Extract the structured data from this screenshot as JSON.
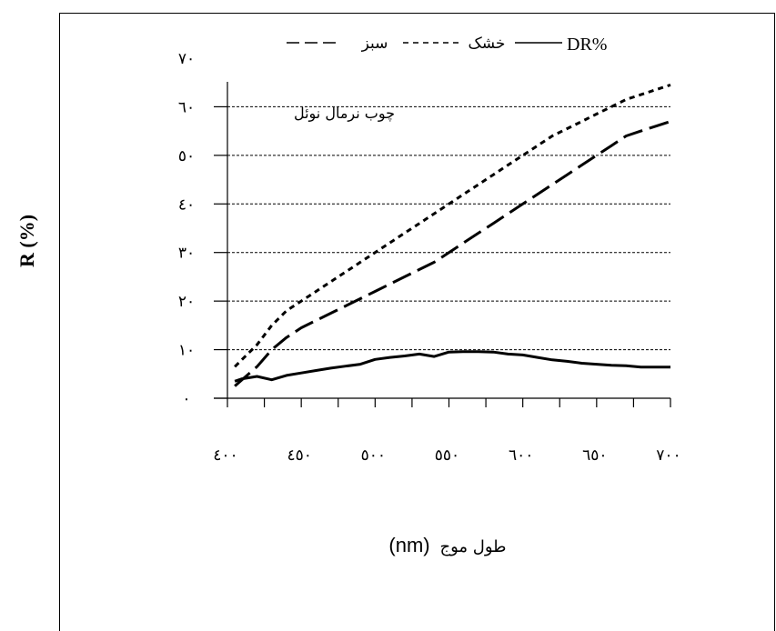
{
  "chart_data": {
    "type": "line",
    "ylabel": "R (%)",
    "xlabel_text": "طول موج",
    "xlabel_unit": "nm",
    "annotation": "چوب نرمال نوئل",
    "legend": [
      {
        "label": "DR%",
        "style": "solid"
      },
      {
        "label": "خشک",
        "style": "dashed"
      },
      {
        "label": "سبز",
        "style": "longdash"
      }
    ],
    "ylim": [
      0,
      70
    ],
    "yticks": [
      0,
      10,
      20,
      30,
      40,
      50,
      60,
      70
    ],
    "ytick_labels": [
      "٠",
      "١٠",
      "٢٠",
      "٣٠",
      "٤٠",
      "٥٠",
      "٦٠",
      "٧٠"
    ],
    "xlim": [
      400,
      700
    ],
    "xticks": [
      400,
      450,
      500,
      550,
      600,
      650,
      700
    ],
    "xtick_labels": [
      "٤٠٠",
      "٤٥٠",
      "٥٠٠",
      "٥٥٠",
      "٦٠٠",
      "٦٥٠",
      "٧٠٠"
    ],
    "grid": "horizontal-dashed",
    "series": [
      {
        "name": "DR%",
        "style": "solid",
        "x": [
          405,
          410,
          420,
          430,
          440,
          450,
          460,
          470,
          480,
          490,
          500,
          510,
          520,
          530,
          540,
          550,
          560,
          570,
          580,
          590,
          600,
          610,
          620,
          630,
          640,
          650,
          660,
          670,
          680,
          690,
          700
        ],
        "y": [
          3.5,
          4,
          4.5,
          3.8,
          4.7,
          5.2,
          5.7,
          6.2,
          6.6,
          7,
          8,
          8.4,
          8.7,
          9.1,
          8.6,
          9.5,
          9.6,
          9.6,
          9.5,
          9.1,
          8.9,
          8.4,
          7.9,
          7.6,
          7.2,
          7,
          6.8,
          6.7,
          6.4,
          6.4,
          6.4
        ]
      },
      {
        "name": "خشک",
        "style": "dashed",
        "x": [
          405,
          420,
          430,
          440,
          450,
          460,
          470,
          480,
          490,
          500,
          510,
          520,
          530,
          540,
          550,
          560,
          570,
          580,
          590,
          600,
          610,
          620,
          630,
          640,
          650,
          660,
          670,
          680,
          690,
          700
        ],
        "y": [
          6.5,
          11,
          15,
          18,
          20,
          22,
          24,
          26,
          28,
          30,
          32,
          34,
          36,
          38,
          40,
          42,
          44,
          46,
          48,
          50,
          52,
          54,
          55.5,
          57,
          58.5,
          60,
          61.5,
          62.5,
          63.5,
          64.5
        ]
      },
      {
        "name": "سبز",
        "style": "longdash",
        "x": [
          405,
          420,
          430,
          440,
          450,
          460,
          470,
          480,
          490,
          500,
          510,
          520,
          530,
          540,
          550,
          560,
          570,
          580,
          590,
          600,
          610,
          620,
          630,
          640,
          650,
          660,
          670,
          680,
          690,
          700
        ],
        "y": [
          2.5,
          6.5,
          10,
          12.5,
          14.5,
          16,
          17.5,
          19,
          20.5,
          22,
          23.5,
          25,
          26.5,
          28,
          30,
          32,
          34,
          36,
          38,
          40,
          42,
          44,
          46,
          48,
          50,
          52,
          54,
          55,
          56,
          57
        ]
      }
    ]
  }
}
